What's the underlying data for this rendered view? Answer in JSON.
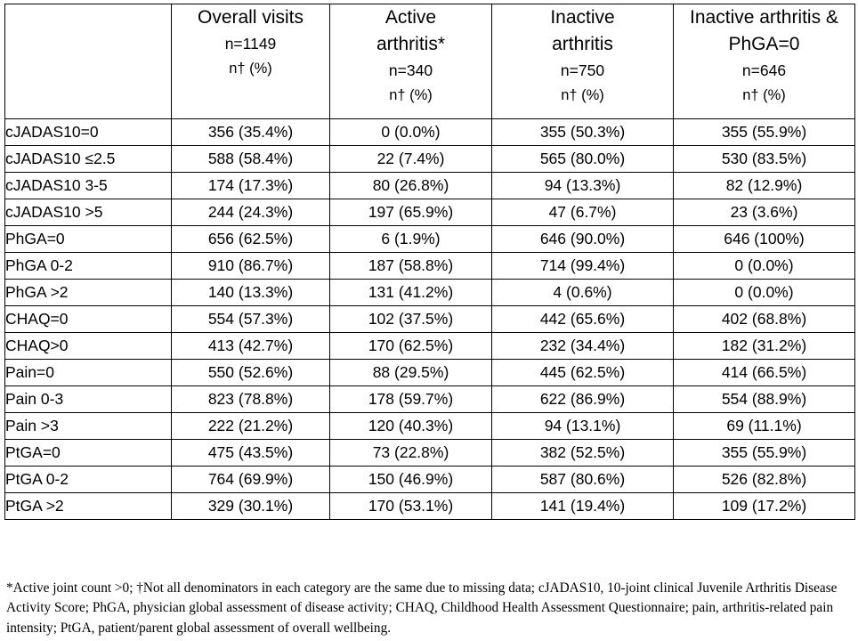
{
  "table": {
    "columns": [
      {
        "title": "",
        "n": "",
        "pct": ""
      },
      {
        "title": "Overall visits",
        "n": "n=1149",
        "pct": "n† (%)"
      },
      {
        "title": "Active arthritis*",
        "n": "n=340",
        "pct": "n† (%)"
      },
      {
        "title": "Inactive arthritis",
        "n": "n=750",
        "pct": "n† (%)"
      },
      {
        "title": "Inactive arthritis & PhGA=0",
        "n": "n=646",
        "pct": "n† (%)"
      }
    ],
    "rows": [
      {
        "label": "cJADAS10=0",
        "values": [
          "356 (35.4%)",
          "0 (0.0%)",
          "355 (50.3%)",
          "355 (55.9%)"
        ]
      },
      {
        "label": "cJADAS10 ≤2.5",
        "values": [
          "588 (58.4%)",
          "22 (7.4%)",
          "565 (80.0%)",
          "530 (83.5%)"
        ]
      },
      {
        "label": "cJADAS10 3-5",
        "values": [
          "174 (17.3%)",
          "80 (26.8%)",
          "94 (13.3%)",
          "82 (12.9%)"
        ]
      },
      {
        "label": "cJADAS10 >5",
        "values": [
          "244 (24.3%)",
          "197 (65.9%)",
          "47 (6.7%)",
          "23 (3.6%)"
        ]
      },
      {
        "label": "PhGA=0",
        "values": [
          "656 (62.5%)",
          "6 (1.9%)",
          "646 (90.0%)",
          "646 (100%)"
        ]
      },
      {
        "label": "PhGA 0-2",
        "values": [
          "910 (86.7%)",
          "187 (58.8%)",
          "714 (99.4%)",
          "0 (0.0%)"
        ]
      },
      {
        "label": "PhGA >2",
        "values": [
          "140 (13.3%)",
          "131 (41.2%)",
          "4 (0.6%)",
          "0 (0.0%)"
        ]
      },
      {
        "label": "CHAQ=0",
        "values": [
          "554 (57.3%)",
          "102 (37.5%)",
          "442 (65.6%)",
          "402 (68.8%)"
        ]
      },
      {
        "label": "CHAQ>0",
        "values": [
          "413 (42.7%)",
          "170 (62.5%)",
          "232 (34.4%)",
          "182 (31.2%)"
        ]
      },
      {
        "label": "Pain=0",
        "values": [
          "550 (52.6%)",
          "88 (29.5%)",
          "445 (62.5%)",
          "414 (66.5%)"
        ]
      },
      {
        "label": "Pain 0-3",
        "values": [
          "823 (78.8%)",
          "178 (59.7%)",
          "622 (86.9%)",
          "554 (88.9%)"
        ]
      },
      {
        "label": "Pain >3",
        "values": [
          "222 (21.2%)",
          "120 (40.3%)",
          "94 (13.1%)",
          "69 (11.1%)"
        ]
      },
      {
        "label": "PtGA=0",
        "values": [
          "475 (43.5%)",
          "73 (22.8%)",
          "382 (52.5%)",
          "355 (55.9%)"
        ]
      },
      {
        "label": "PtGA 0-2",
        "values": [
          "764 (69.9%)",
          "150 (46.9%)",
          "587 (80.6%)",
          "526 (82.8%)"
        ]
      },
      {
        "label": "PtGA >2",
        "values": [
          "329 (30.1%)",
          "170 (53.1%)",
          "141 (19.4%)",
          "109 (17.2%)"
        ]
      }
    ]
  },
  "footnote": "*Active joint count >0; †Not all denominators in each category are the same due to missing data; cJADAS10, 10-joint clinical Juvenile Arthritis Disease Activity Score; PhGA, physician global assessment of disease activity; CHAQ, Childhood Health Assessment Questionnaire; pain, arthritis-related pain intensity; PtGA, patient/parent global assessment of overall wellbeing."
}
